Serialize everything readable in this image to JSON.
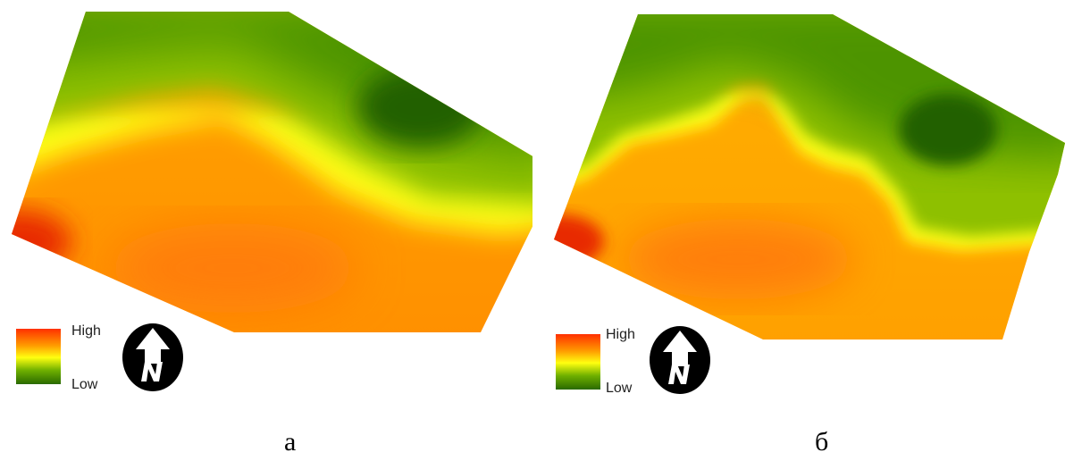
{
  "panels": [
    {
      "caption": "а",
      "legend": {
        "high": "High",
        "low": "Low"
      },
      "north_symbol": "north-arrow-icon"
    },
    {
      "caption": "б",
      "legend": {
        "high": "High",
        "low": "Low"
      },
      "north_symbol": "north-arrow-icon"
    }
  ],
  "colors": {
    "high": "#ff3000",
    "mid_high": "#ff9a00",
    "mid": "#ffff10",
    "mid_low": "#6fb000",
    "low": "#2a6a00"
  }
}
